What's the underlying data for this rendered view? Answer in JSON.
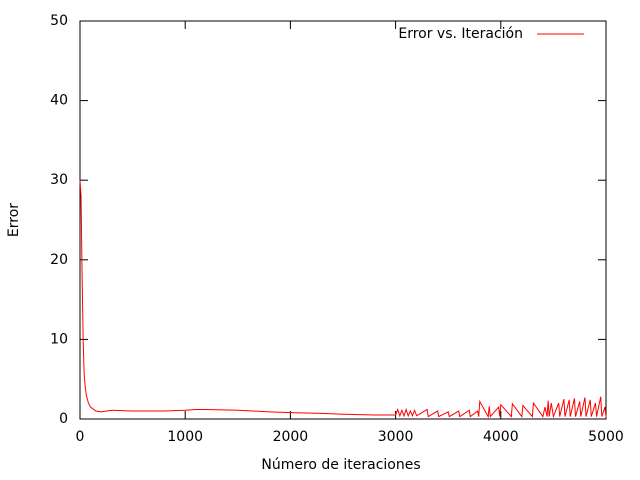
{
  "chart_data": {
    "type": "line",
    "x_label": "Número de iteraciones",
    "y_label": "Error",
    "x": [
      0,
      10,
      20,
      30,
      40,
      50,
      60,
      80,
      100,
      150,
      200,
      300,
      500,
      800,
      1000,
      1100,
      1200,
      1500,
      1800,
      2000,
      2300,
      2500,
      2800,
      3000,
      3020,
      3040,
      3060,
      3080,
      3100,
      3120,
      3140,
      3160,
      3180,
      3200,
      3300,
      3310,
      3400,
      3410,
      3500,
      3510,
      3600,
      3610,
      3700,
      3710,
      3780,
      3790,
      3800,
      3880,
      3890,
      3900,
      3980,
      3990,
      4000,
      4100,
      4110,
      4200,
      4210,
      4300,
      4310,
      4400,
      4420,
      4440,
      4450,
      4460,
      4480,
      4500,
      4550,
      4560,
      4600,
      4610,
      4650,
      4660,
      4700,
      4710,
      4750,
      4760,
      4800,
      4810,
      4850,
      4860,
      4900,
      4910,
      4950,
      4960,
      4990,
      5000
    ],
    "series": [
      {
        "name": "Error vs. Iteración",
        "color": "#ff0000",
        "values": [
          30,
          28,
          18,
          10,
          5.5,
          4,
          3,
          2,
          1.5,
          1.0,
          0.9,
          1.1,
          1.0,
          1.0,
          1.1,
          1.2,
          1.2,
          1.1,
          0.9,
          0.8,
          0.7,
          0.6,
          0.5,
          0.5,
          1.2,
          0.4,
          1.1,
          0.4,
          1.2,
          0.4,
          1.0,
          0.4,
          1.1,
          0.4,
          1.2,
          0.3,
          1.0,
          0.3,
          0.9,
          0.3,
          1.0,
          0.3,
          1.1,
          0.3,
          1.0,
          0.3,
          2.2,
          0.3,
          1.6,
          0.3,
          1.5,
          0.3,
          1.8,
          0.3,
          1.9,
          0.3,
          1.7,
          0.3,
          2.0,
          0.3,
          1.5,
          0.3,
          2.3,
          0.3,
          2.0,
          0.3,
          2.0,
          0.3,
          2.5,
          0.3,
          2.4,
          0.3,
          2.6,
          0.3,
          2.2,
          0.3,
          2.7,
          0.3,
          2.4,
          0.3,
          2.0,
          0.3,
          2.8,
          0.3,
          1.5,
          0.2
        ]
      }
    ],
    "xlim": [
      0,
      5000
    ],
    "xticks": [
      0,
      1000,
      2000,
      3000,
      4000,
      5000
    ],
    "ylim": [
      0,
      50
    ],
    "yticks": [
      0,
      10,
      20,
      30,
      40,
      50
    ],
    "grid": false,
    "legend": "top-right"
  }
}
